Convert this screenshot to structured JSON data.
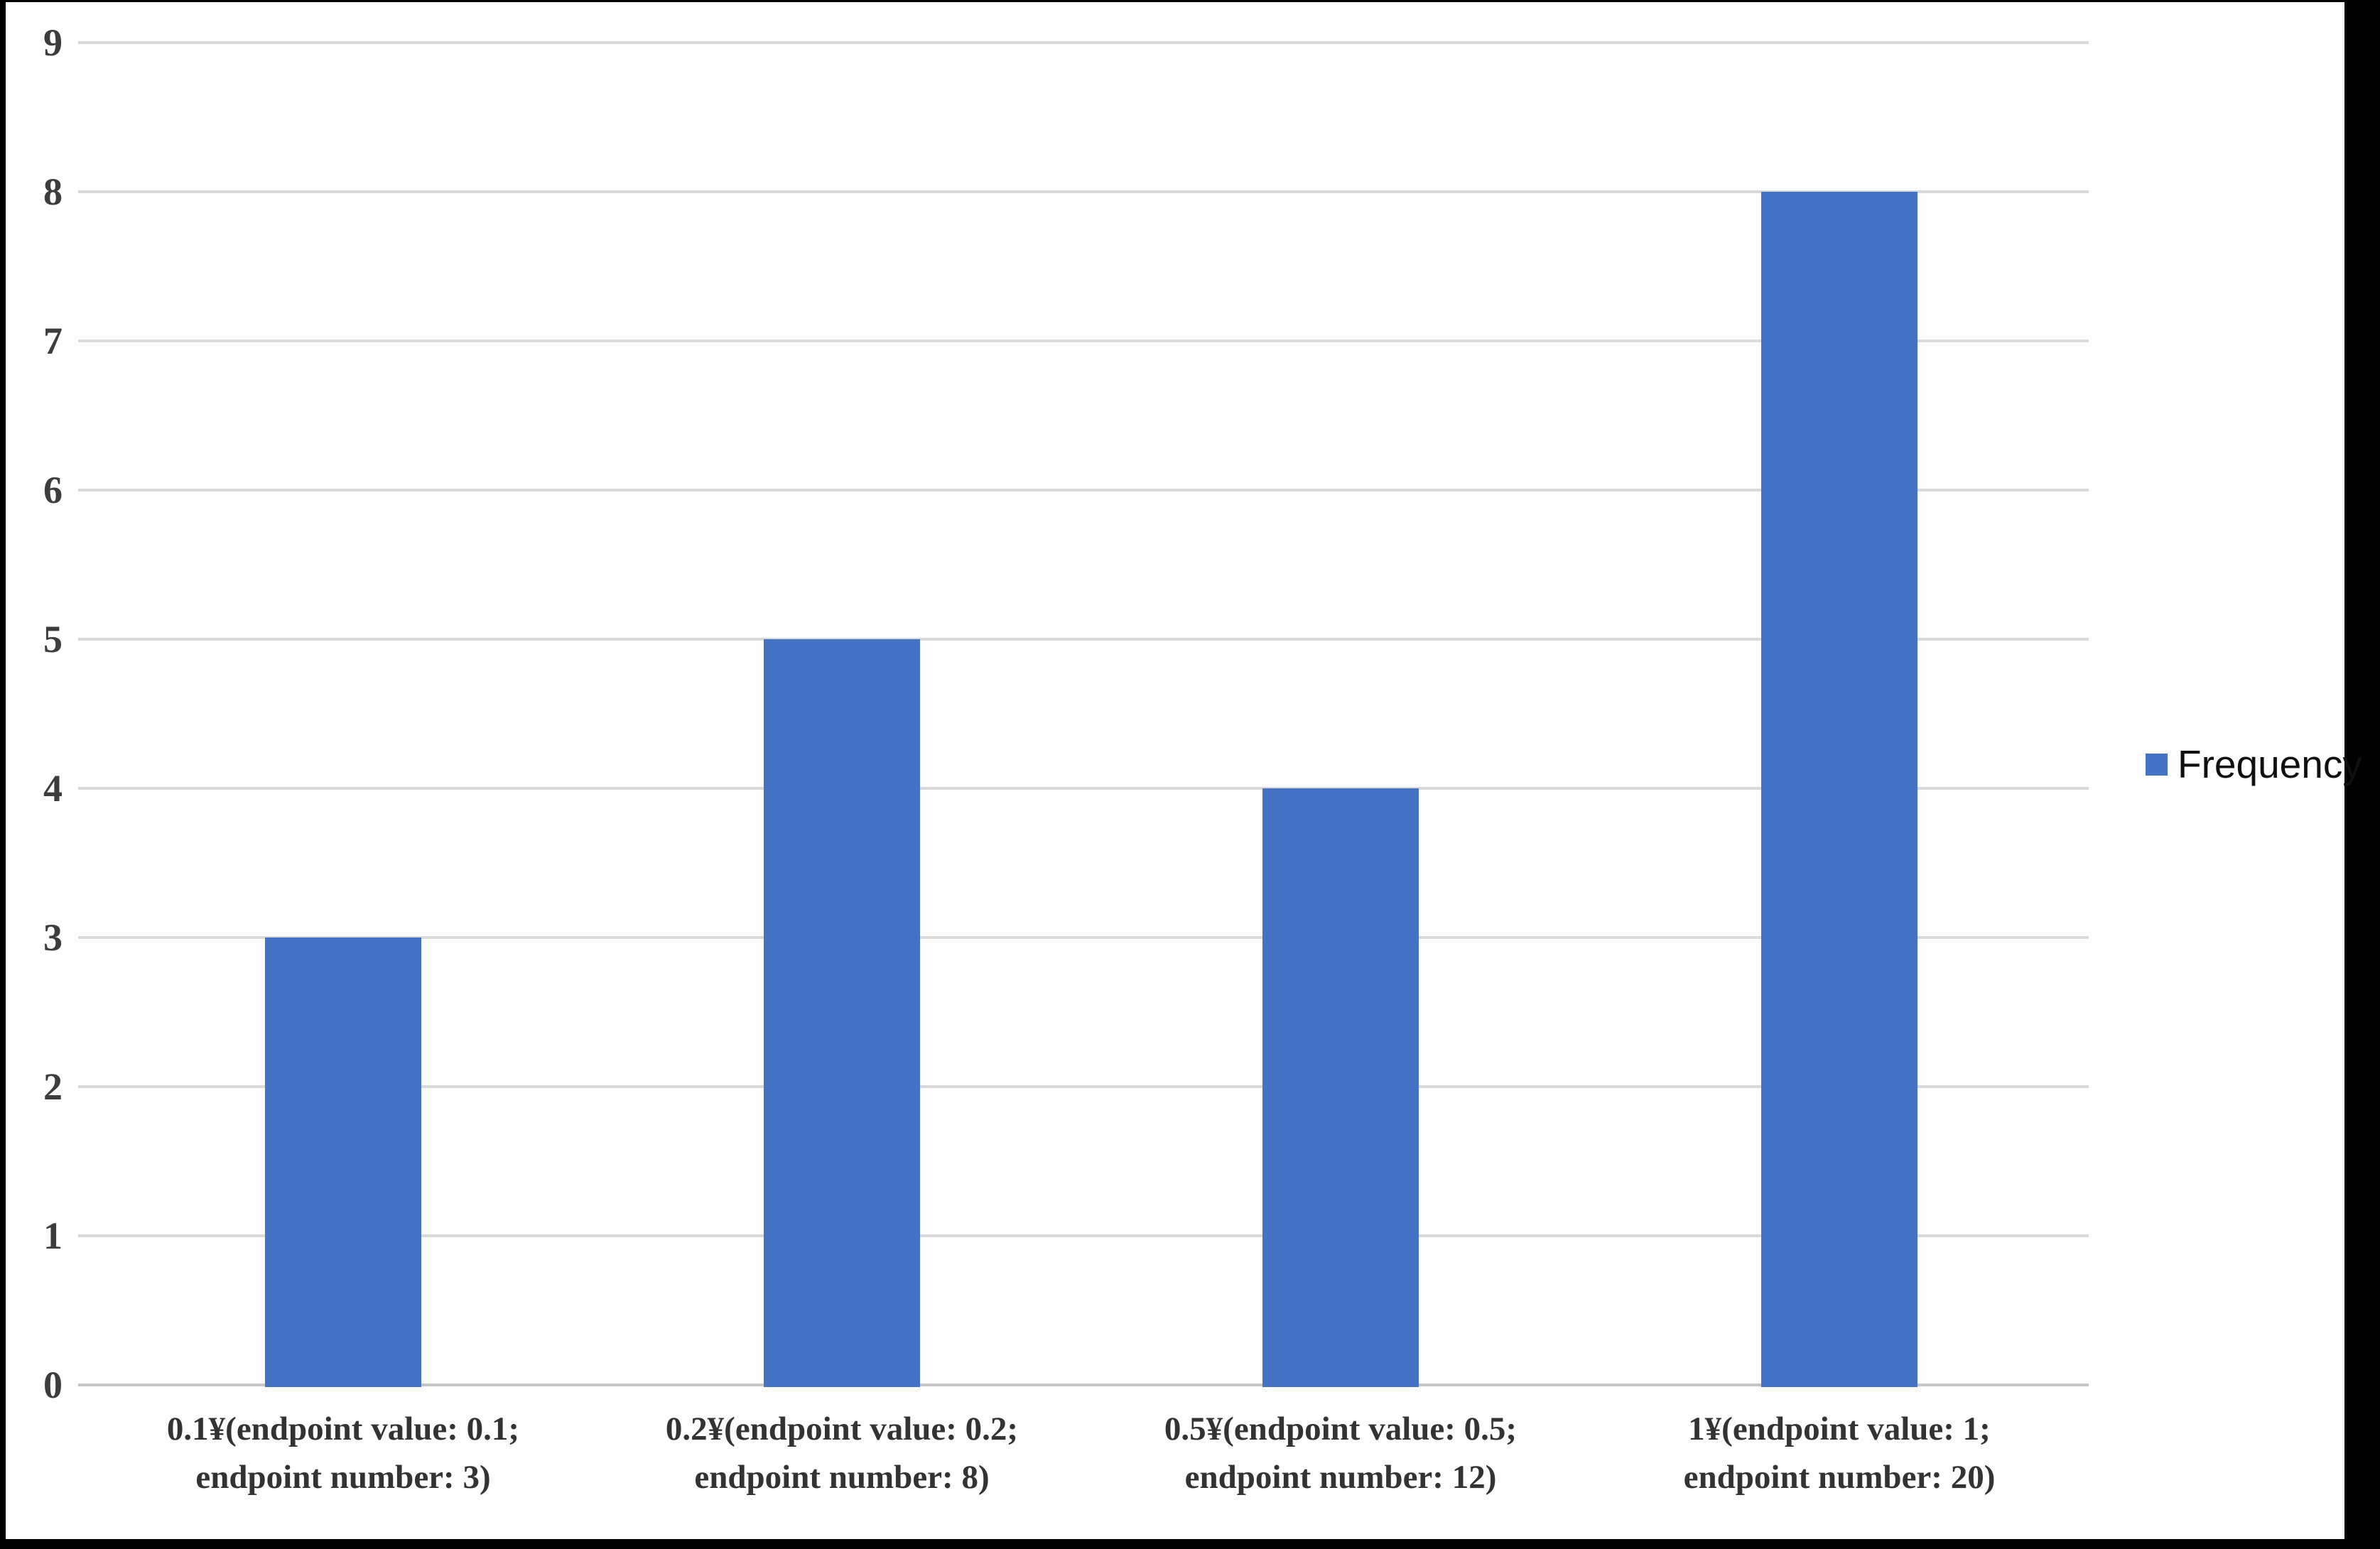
{
  "chart_data": {
    "type": "bar",
    "title": "",
    "xlabel": "",
    "ylabel": "",
    "categories": [
      "0.1¥(endpoint value: 0.1;\nendpoint number: 3)",
      "0.2¥(endpoint value: 0.2;\nendpoint number: 8)",
      "0.5¥(endpoint value: 0.5;\nendpoint number: 12)",
      "1¥(endpoint value: 1;\nendpoint number: 20)"
    ],
    "series": [
      {
        "name": "Frequency",
        "values": [
          3,
          5,
          4,
          8
        ],
        "color": "#4472c4"
      }
    ],
    "yticks": [
      0,
      1,
      2,
      3,
      4,
      5,
      6,
      7,
      8,
      9
    ],
    "ylim": [
      0,
      9
    ],
    "grid": "horizontal",
    "legend_position": "right"
  },
  "colors": {
    "bar": "#4472c4",
    "legend_swatch": "#4472c4",
    "gridline": "#d9d9d9",
    "axis_line": "#c6c6c6",
    "y_tick_label": "#3d3d3d",
    "x_tick_label": "#333333",
    "frame": "#000000",
    "background": "#fdfdfd"
  }
}
